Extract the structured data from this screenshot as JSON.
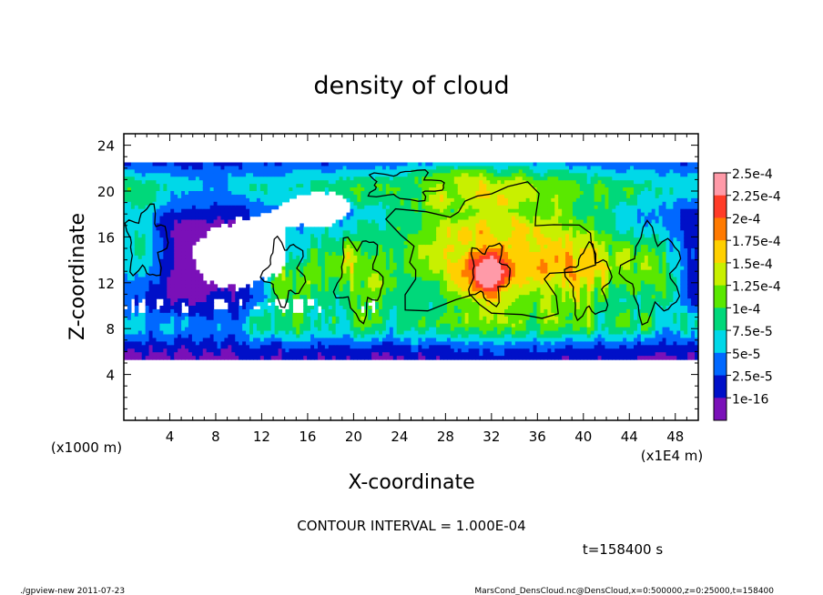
{
  "chart_data": {
    "type": "heatmap",
    "title": "density of cloud",
    "xlabel": "X-coordinate",
    "ylabel": "Z-coordinate",
    "x_unit_label": "(x1E4 m)",
    "y_unit_label": "(x1000 m)",
    "xlim": [
      0,
      50
    ],
    "ylim": [
      0,
      25
    ],
    "x_ticks": [
      4,
      8,
      12,
      16,
      20,
      24,
      28,
      32,
      36,
      40,
      44,
      48
    ],
    "y_ticks": [
      4,
      8,
      12,
      16,
      20,
      24
    ],
    "colorbar": {
      "labels": [
        "2.5e-4",
        "2.25e-4",
        "2e-4",
        "1.75e-4",
        "1.5e-4",
        "1.25e-4",
        "1e-4",
        "7.5e-5",
        "5e-5",
        "2.5e-5",
        "1e-16"
      ],
      "colors": [
        "#ff9aa8",
        "#ff3c28",
        "#ff7a00",
        "#ffd000",
        "#c8f000",
        "#5ae800",
        "#00d87a",
        "#00d8e8",
        "#0068ff",
        "#0010c8",
        "#7a10b8"
      ]
    },
    "contour_interval": "CONTOUR INTERVAL = 1.000E-04",
    "time_label": "t=158400 s"
  },
  "footer": {
    "left": "./gpview-new   2011-07-23",
    "right": "MarsCond_DensCloud.nc@DensCloud,x=0:500000,z=0:25000,t=158400"
  }
}
